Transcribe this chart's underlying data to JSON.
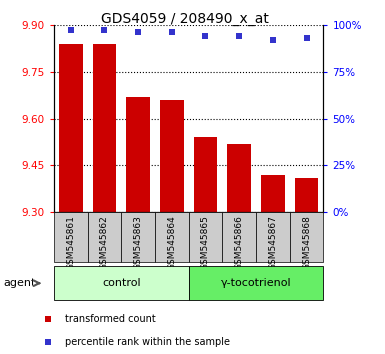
{
  "title": "GDS4059 / 208490_x_at",
  "categories": [
    "GSM545861",
    "GSM545862",
    "GSM545863",
    "GSM545864",
    "GSM545865",
    "GSM545866",
    "GSM545867",
    "GSM545868"
  ],
  "bar_values": [
    9.84,
    9.84,
    9.67,
    9.66,
    9.54,
    9.52,
    9.42,
    9.41
  ],
  "scatter_values": [
    97,
    97,
    96,
    96,
    94,
    94,
    92,
    93
  ],
  "ylim_left": [
    9.3,
    9.9
  ],
  "ylim_right": [
    0,
    100
  ],
  "yticks_left": [
    9.3,
    9.45,
    9.6,
    9.75,
    9.9
  ],
  "yticks_right": [
    0,
    25,
    50,
    75,
    100
  ],
  "bar_color": "#cc0000",
  "scatter_color": "#3333cc",
  "control_color": "#ccffcc",
  "treatment_color": "#66ee66",
  "label_bg_color": "#cccccc",
  "control_label": "control",
  "treatment_label": "γ-tocotrienol",
  "agent_label": "agent",
  "legend_bar": "transformed count",
  "legend_scatter": "percentile rank within the sample",
  "n_control": 4,
  "n_treatment": 4
}
